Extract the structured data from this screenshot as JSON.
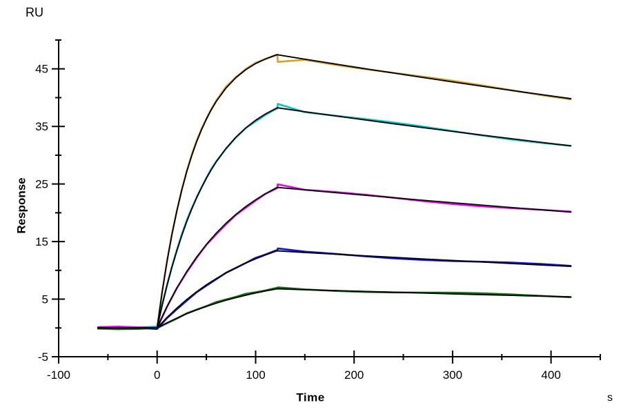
{
  "figure": {
    "background": "#FFFFFF",
    "axis_color": "#000000",
    "tick_label_color": "#000000"
  },
  "chart_data": {
    "type": "line",
    "title": "",
    "xlabel": "Time",
    "ylabel": "Response",
    "x_unit": "s",
    "y_unit": "RU",
    "xlim": [
      -100,
      450
    ],
    "ylim": [
      -5,
      50
    ],
    "x_ticks_major": [
      -100,
      0,
      100,
      200,
      300,
      400
    ],
    "x_ticks_minor": [
      -50,
      50,
      150,
      250,
      350,
      450
    ],
    "y_ticks_major": [
      -5,
      5,
      15,
      25,
      35,
      45
    ],
    "y_ticks_minor": [
      0,
      10,
      20,
      30,
      40,
      50
    ],
    "grid": false,
    "legend": "none",
    "baseline_start_s": -60,
    "injection_start_s": 0,
    "injection_stop_s": 122,
    "end_s": 420,
    "fit_color": "#000000",
    "series": [
      {
        "name": "curve-1-orange",
        "color": "#D9A21D",
        "peak_ru": 47.4,
        "end_ru": 39.8,
        "artifact": {
          "t": 122.6,
          "ru": 46.2
        },
        "points": [
          [
            -60,
            0
          ],
          [
            -40,
            0
          ],
          [
            -20,
            0
          ],
          [
            0,
            0
          ],
          [
            5,
            6.13
          ],
          [
            10,
            11.49
          ],
          [
            15,
            16.2
          ],
          [
            20,
            20.32
          ],
          [
            25,
            23.93
          ],
          [
            30,
            27.09
          ],
          [
            35,
            29.86
          ],
          [
            40,
            32.28
          ],
          [
            45,
            34.41
          ],
          [
            50,
            36.26
          ],
          [
            55,
            37.9
          ],
          [
            60,
            39.33
          ],
          [
            70,
            41.67
          ],
          [
            80,
            43.47
          ],
          [
            90,
            44.85
          ],
          [
            100,
            45.91
          ],
          [
            110,
            46.72
          ],
          [
            120,
            47.34
          ],
          [
            122,
            47.45
          ],
          [
            150,
            46.67
          ],
          [
            180,
            45.86
          ],
          [
            210,
            45.05
          ],
          [
            240,
            44.27
          ],
          [
            270,
            43.49
          ],
          [
            300,
            42.73
          ],
          [
            330,
            41.98
          ],
          [
            360,
            41.24
          ],
          [
            390,
            40.52
          ],
          [
            420,
            39.81
          ]
        ]
      },
      {
        "name": "curve-2-cyan",
        "color": "#00C6CC",
        "peak_ru": 38.2,
        "end_ru": 31.6,
        "artifact": {
          "t": 122.6,
          "ru": 38.9
        },
        "points": [
          [
            -60,
            0
          ],
          [
            -40,
            0
          ],
          [
            -20,
            0
          ],
          [
            0,
            0
          ],
          [
            5,
            3.84
          ],
          [
            10,
            7.33
          ],
          [
            15,
            10.52
          ],
          [
            20,
            13.4
          ],
          [
            25,
            16.03
          ],
          [
            30,
            18.42
          ],
          [
            35,
            20.59
          ],
          [
            40,
            22.57
          ],
          [
            45,
            24.37
          ],
          [
            50,
            26.0
          ],
          [
            55,
            27.49
          ],
          [
            60,
            28.84
          ],
          [
            70,
            31.19
          ],
          [
            80,
            33.13
          ],
          [
            90,
            34.73
          ],
          [
            100,
            36.06
          ],
          [
            110,
            37.16
          ],
          [
            120,
            38.06
          ],
          [
            122,
            38.23
          ],
          [
            150,
            37.55
          ],
          [
            180,
            36.84
          ],
          [
            210,
            36.15
          ],
          [
            240,
            35.46
          ],
          [
            270,
            34.79
          ],
          [
            300,
            34.13
          ],
          [
            330,
            33.49
          ],
          [
            360,
            32.85
          ],
          [
            390,
            32.23
          ],
          [
            420,
            31.62
          ]
        ]
      },
      {
        "name": "curve-3-magenta",
        "color": "#EE00EE",
        "peak_ru": 24.4,
        "end_ru": 20.1,
        "artifact": {
          "t": 122.6,
          "ru": 24.95
        },
        "points": [
          [
            -60,
            0
          ],
          [
            -40,
            0
          ],
          [
            -20,
            0
          ],
          [
            0,
            0
          ],
          [
            10,
            3.67
          ],
          [
            20,
            6.9
          ],
          [
            30,
            9.76
          ],
          [
            40,
            12.28
          ],
          [
            50,
            14.5
          ],
          [
            60,
            16.46
          ],
          [
            70,
            18.19
          ],
          [
            80,
            19.72
          ],
          [
            90,
            21.07
          ],
          [
            100,
            22.26
          ],
          [
            110,
            23.31
          ],
          [
            120,
            24.24
          ],
          [
            122,
            24.41
          ],
          [
            150,
            23.97
          ],
          [
            180,
            23.51
          ],
          [
            210,
            23.06
          ],
          [
            240,
            22.61
          ],
          [
            270,
            22.17
          ],
          [
            300,
            21.74
          ],
          [
            330,
            21.32
          ],
          [
            360,
            20.91
          ],
          [
            390,
            20.51
          ],
          [
            420,
            20.11
          ]
        ]
      },
      {
        "name": "curve-4-blue",
        "color": "#0F0FDE",
        "peak_ru": 13.4,
        "end_ru": 10.7,
        "artifact": {
          "t": 122.6,
          "ru": 13.8
        },
        "points": [
          [
            -60,
            0
          ],
          [
            -40,
            0
          ],
          [
            -20,
            0
          ],
          [
            0,
            0
          ],
          [
            10,
            1.81
          ],
          [
            20,
            3.44
          ],
          [
            30,
            4.92
          ],
          [
            40,
            6.26
          ],
          [
            50,
            7.48
          ],
          [
            60,
            8.57
          ],
          [
            70,
            9.56
          ],
          [
            80,
            10.46
          ],
          [
            90,
            11.27
          ],
          [
            100,
            12.01
          ],
          [
            110,
            12.67
          ],
          [
            120,
            13.28
          ],
          [
            122,
            13.39
          ],
          [
            150,
            13.11
          ],
          [
            180,
            12.82
          ],
          [
            210,
            12.53
          ],
          [
            240,
            12.25
          ],
          [
            270,
            11.98
          ],
          [
            300,
            11.71
          ],
          [
            330,
            11.45
          ],
          [
            360,
            11.19
          ],
          [
            390,
            10.94
          ],
          [
            420,
            10.7
          ]
        ]
      },
      {
        "name": "curve-5-green",
        "color": "#0B770B",
        "peak_ru": 6.8,
        "end_ru": 5.4,
        "artifact": {
          "t": 122.6,
          "ru": 7.05
        },
        "points": [
          [
            -60,
            0
          ],
          [
            -40,
            0
          ],
          [
            -20,
            0
          ],
          [
            0,
            0
          ],
          [
            10,
            0.9
          ],
          [
            20,
            1.71
          ],
          [
            30,
            2.46
          ],
          [
            40,
            3.13
          ],
          [
            50,
            3.74
          ],
          [
            60,
            4.3
          ],
          [
            70,
            4.81
          ],
          [
            80,
            5.27
          ],
          [
            90,
            5.69
          ],
          [
            100,
            6.07
          ],
          [
            110,
            6.42
          ],
          [
            120,
            6.73
          ],
          [
            122,
            6.79
          ],
          [
            150,
            6.64
          ],
          [
            180,
            6.49
          ],
          [
            210,
            6.35
          ],
          [
            240,
            6.2
          ],
          [
            270,
            6.06
          ],
          [
            300,
            5.92
          ],
          [
            330,
            5.79
          ],
          [
            360,
            5.65
          ],
          [
            390,
            5.52
          ],
          [
            420,
            5.4
          ]
        ]
      }
    ]
  }
}
